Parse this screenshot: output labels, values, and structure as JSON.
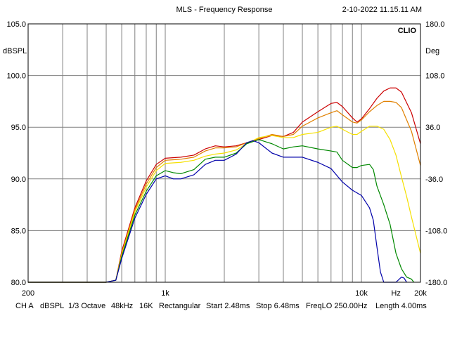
{
  "chart_data": {
    "type": "line",
    "title": "MLS - Frequency Response",
    "timestamp": "2-10-2022 11.15.11 AM",
    "brand": "CLIO",
    "left_axis": {
      "label": "dBSPL",
      "ticks": [
        "105.0",
        "100.0",
        "95.0",
        "90.0",
        "85.0",
        "80.0"
      ],
      "min": 80,
      "max": 105
    },
    "right_axis": {
      "label": "Deg",
      "ticks": [
        "180.0",
        "108.0",
        "36.0",
        "-36.0",
        "-108.0",
        "-180.0"
      ],
      "min": -180,
      "max": 180
    },
    "x_axis": {
      "scale": "log",
      "min": 200,
      "max": 20000,
      "tick_labels": [
        "200",
        "1k",
        "10k",
        "Hz",
        "20k"
      ]
    },
    "grid": true,
    "series": [
      {
        "color": "#cc0000",
        "points": [
          [
            200,
            80
          ],
          [
            500,
            80
          ],
          [
            560,
            80.2
          ],
          [
            600,
            83
          ],
          [
            700,
            87.2
          ],
          [
            800,
            89.8
          ],
          [
            900,
            91.4
          ],
          [
            1000,
            92
          ],
          [
            1200,
            92.1
          ],
          [
            1400,
            92.3
          ],
          [
            1600,
            92.9
          ],
          [
            1800,
            93.2
          ],
          [
            2000,
            93.1
          ],
          [
            2300,
            93.2
          ],
          [
            2600,
            93.5
          ],
          [
            3000,
            93.8
          ],
          [
            3500,
            94.2
          ],
          [
            4000,
            94.1
          ],
          [
            4500,
            94.5
          ],
          [
            5000,
            95.5
          ],
          [
            6000,
            96.5
          ],
          [
            7000,
            97.3
          ],
          [
            7500,
            97.4
          ],
          [
            8000,
            97
          ],
          [
            9000,
            95.9
          ],
          [
            9500,
            95.5
          ],
          [
            10000,
            95.8
          ],
          [
            11000,
            96.8
          ],
          [
            12000,
            97.8
          ],
          [
            13000,
            98.5
          ],
          [
            14000,
            98.8
          ],
          [
            15000,
            98.8
          ],
          [
            16000,
            98.4
          ],
          [
            18000,
            96.4
          ],
          [
            20000,
            93.4
          ]
        ]
      },
      {
        "color": "#e08000",
        "points": [
          [
            200,
            80
          ],
          [
            500,
            80
          ],
          [
            560,
            80.2
          ],
          [
            600,
            82.8
          ],
          [
            700,
            87
          ],
          [
            800,
            89.5
          ],
          [
            900,
            91.1
          ],
          [
            1000,
            91.8
          ],
          [
            1200,
            91.9
          ],
          [
            1400,
            92.1
          ],
          [
            1600,
            92.7
          ],
          [
            1800,
            93
          ],
          [
            2000,
            93
          ],
          [
            2300,
            93.1
          ],
          [
            2600,
            93.5
          ],
          [
            3000,
            93.9
          ],
          [
            3500,
            94.3
          ],
          [
            4000,
            94.1
          ],
          [
            4500,
            94.3
          ],
          [
            5000,
            95.1
          ],
          [
            6000,
            95.9
          ],
          [
            7000,
            96.4
          ],
          [
            7500,
            96.6
          ],
          [
            8000,
            96.2
          ],
          [
            9000,
            95.5
          ],
          [
            9500,
            95.4
          ],
          [
            10000,
            95.7
          ],
          [
            11000,
            96.5
          ],
          [
            12000,
            97.1
          ],
          [
            13000,
            97.5
          ],
          [
            14000,
            97.5
          ],
          [
            15000,
            97.4
          ],
          [
            16000,
            96.9
          ],
          [
            18000,
            94.6
          ],
          [
            20000,
            91.3
          ]
        ]
      },
      {
        "color": "#f5e000",
        "points": [
          [
            200,
            80
          ],
          [
            500,
            80
          ],
          [
            560,
            80.2
          ],
          [
            600,
            82.7
          ],
          [
            700,
            86.8
          ],
          [
            800,
            89.2
          ],
          [
            900,
            90.8
          ],
          [
            1000,
            91.5
          ],
          [
            1200,
            91.6
          ],
          [
            1400,
            91.8
          ],
          [
            1600,
            92.2
          ],
          [
            1800,
            92.4
          ],
          [
            2000,
            92.5
          ],
          [
            2300,
            92.8
          ],
          [
            2600,
            93.4
          ],
          [
            3000,
            94
          ],
          [
            3500,
            94.2
          ],
          [
            4000,
            94
          ],
          [
            4500,
            94
          ],
          [
            5000,
            94.3
          ],
          [
            6000,
            94.5
          ],
          [
            7000,
            95
          ],
          [
            7500,
            95.1
          ],
          [
            8000,
            94.8
          ],
          [
            9000,
            94.3
          ],
          [
            9500,
            94.3
          ],
          [
            10000,
            94.6
          ],
          [
            11000,
            95.1
          ],
          [
            12000,
            95.1
          ],
          [
            13000,
            94.8
          ],
          [
            14000,
            93.8
          ],
          [
            15000,
            92.3
          ],
          [
            16000,
            90.2
          ],
          [
            17000,
            88.3
          ],
          [
            18000,
            86.3
          ],
          [
            20000,
            82.8
          ]
        ]
      },
      {
        "color": "#008800",
        "points": [
          [
            200,
            80
          ],
          [
            500,
            80
          ],
          [
            560,
            80.2
          ],
          [
            600,
            82.5
          ],
          [
            700,
            86.5
          ],
          [
            800,
            88.8
          ],
          [
            900,
            90.3
          ],
          [
            1000,
            90.8
          ],
          [
            1100,
            90.6
          ],
          [
            1200,
            90.5
          ],
          [
            1400,
            90.9
          ],
          [
            1600,
            91.9
          ],
          [
            1800,
            92.1
          ],
          [
            2000,
            92.1
          ],
          [
            2300,
            92.5
          ],
          [
            2600,
            93.4
          ],
          [
            3000,
            93.8
          ],
          [
            3500,
            93.4
          ],
          [
            4000,
            92.9
          ],
          [
            4500,
            93.1
          ],
          [
            5000,
            93.2
          ],
          [
            6000,
            92.9
          ],
          [
            7000,
            92.7
          ],
          [
            7500,
            92.6
          ],
          [
            8000,
            91.8
          ],
          [
            9000,
            91.1
          ],
          [
            9500,
            91.1
          ],
          [
            10000,
            91.3
          ],
          [
            11000,
            91.4
          ],
          [
            11500,
            90.9
          ],
          [
            12000,
            89.3
          ],
          [
            13000,
            87.5
          ],
          [
            14000,
            85.6
          ],
          [
            15000,
            82.8
          ],
          [
            16000,
            81.3
          ],
          [
            17000,
            80.5
          ],
          [
            18000,
            80.3
          ],
          [
            18500,
            80
          ]
        ]
      },
      {
        "color": "#0000aa",
        "points": [
          [
            200,
            80
          ],
          [
            500,
            80
          ],
          [
            560,
            80.2
          ],
          [
            600,
            82.3
          ],
          [
            700,
            86.2
          ],
          [
            800,
            88.5
          ],
          [
            900,
            90
          ],
          [
            1000,
            90.3
          ],
          [
            1100,
            90
          ],
          [
            1200,
            90
          ],
          [
            1400,
            90.4
          ],
          [
            1600,
            91.4
          ],
          [
            1800,
            91.8
          ],
          [
            2000,
            91.8
          ],
          [
            2300,
            92.4
          ],
          [
            2600,
            93.5
          ],
          [
            2800,
            93.7
          ],
          [
            3000,
            93.5
          ],
          [
            3500,
            92.5
          ],
          [
            4000,
            92.1
          ],
          [
            4500,
            92.1
          ],
          [
            5000,
            92.1
          ],
          [
            6000,
            91.6
          ],
          [
            7000,
            91
          ],
          [
            8000,
            89.7
          ],
          [
            9000,
            88.9
          ],
          [
            10000,
            88.4
          ],
          [
            11000,
            87.2
          ],
          [
            11500,
            86
          ],
          [
            12000,
            83.4
          ],
          [
            12500,
            81
          ],
          [
            13000,
            80
          ],
          [
            15000,
            80
          ],
          [
            16000,
            80.5
          ],
          [
            16500,
            80.4
          ],
          [
            17000,
            80
          ]
        ]
      }
    ]
  },
  "footer": {
    "channel": "CH A",
    "unit": "dBSPL",
    "smoothing": "1/3 Octave",
    "rate": "48kHz",
    "size": "16K",
    "window": "Rectangular",
    "start": "Start 2.48ms",
    "stop": "Stop 6.48ms",
    "freqlo": "FreqLO 250.00Hz",
    "length": "Length 4.00ms"
  }
}
